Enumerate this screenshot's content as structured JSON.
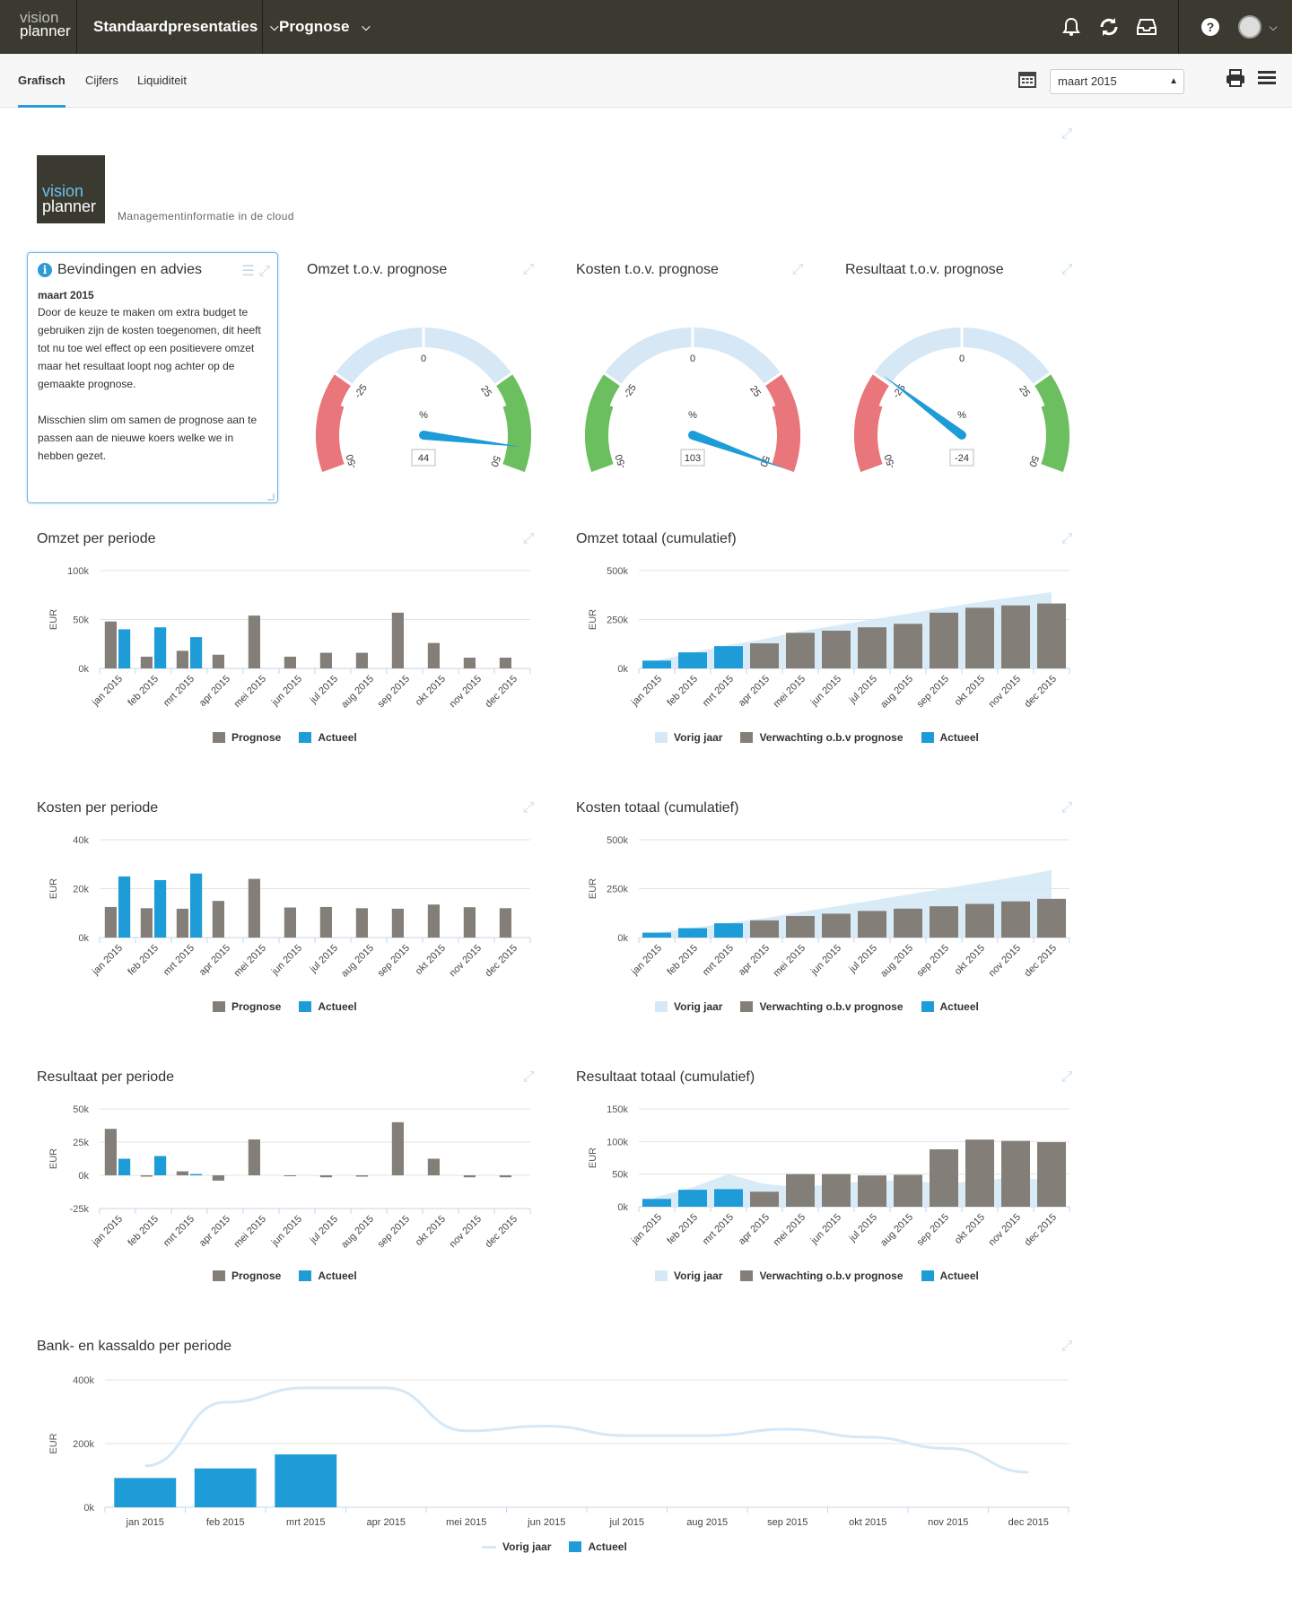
{
  "header": {
    "brand_line1": "vision",
    "brand_line2": "planner",
    "menus": [
      {
        "label": "Standaardpresentaties"
      },
      {
        "label": "Prognose"
      }
    ],
    "icons": [
      "bell-icon",
      "refresh-icon",
      "inbox-icon",
      "help-icon",
      "avatar"
    ]
  },
  "subnav": {
    "tabs": [
      "Grafisch",
      "Cijfers",
      "Liquiditeit"
    ],
    "active_tab": "Grafisch",
    "period_value": "maart 2015"
  },
  "logo": {
    "line1": "vision",
    "line2": "planner",
    "tagline": "Managementinformatie in de cloud"
  },
  "advice": {
    "title": "Bevindingen en advies",
    "date": "maart 2015",
    "paragraph1": "Door de keuze te maken om extra budget te gebruiken zijn de kosten toegenomen, dit heeft tot nu toe wel effect op een positievere omzet maar het resultaat loopt nog achter op de gemaakte prognose.",
    "paragraph2": "Misschien slim om samen de prognose aan te passen aan de nieuwe koers welke we in hebben gezet."
  },
  "colors": {
    "grey": "#837e78",
    "blue": "#1e9cd8",
    "lightblue": "#d4e8f7",
    "red": "#e8767a",
    "green": "#6cbf5f",
    "gauge_mid": "#d6e8f6"
  },
  "gauges": [
    {
      "title": "Omzet t.o.v. prognose",
      "value": 44,
      "display": "44",
      "green_side": "right",
      "unit": "%",
      "ticks": [
        "-50",
        "-25",
        "0",
        "25",
        "50"
      ]
    },
    {
      "title": "Kosten t.o.v. prognose",
      "value": 103,
      "display": "103",
      "green_side": "left",
      "unit": "%",
      "ticks": [
        "-50",
        "-25",
        "0",
        "25",
        "50"
      ]
    },
    {
      "title": "Resultaat t.o.v. prognose",
      "value": -24,
      "display": "-24",
      "green_side": "right",
      "unit": "%",
      "ticks": [
        "-50",
        "-25",
        "0",
        "25",
        "50"
      ]
    }
  ],
  "chart_data": [
    {
      "id": "omzet-periode",
      "type": "bar",
      "title": "Omzet per periode",
      "ylabel": "EUR",
      "categories": [
        "jan 2015",
        "feb 2015",
        "mrt 2015",
        "apr 2015",
        "mei 2015",
        "jun 2015",
        "jul 2015",
        "aug 2015",
        "sep 2015",
        "okt 2015",
        "nov 2015",
        "dec 2015"
      ],
      "yticks": [
        "0k",
        "50k",
        "100k"
      ],
      "ylim": [
        0,
        100000
      ],
      "series": [
        {
          "name": "Prognose",
          "values": [
            48000,
            12000,
            18000,
            14000,
            54000,
            12000,
            16000,
            16000,
            57000,
            26000,
            11000,
            11000
          ]
        },
        {
          "name": "Actueel",
          "values": [
            40000,
            42000,
            32000,
            null,
            null,
            null,
            null,
            null,
            null,
            null,
            null,
            null
          ]
        }
      ]
    },
    {
      "id": "omzet-cum",
      "type": "bar",
      "title": "Omzet totaal (cumulatief)",
      "ylabel": "EUR",
      "categories": [
        "jan 2015",
        "feb 2015",
        "mrt 2015",
        "apr 2015",
        "mei 2015",
        "jun 2015",
        "jul 2015",
        "aug 2015",
        "sep 2015",
        "okt 2015",
        "nov 2015",
        "dec 2015"
      ],
      "yticks": [
        "0k",
        "250k",
        "500k"
      ],
      "ylim": [
        0,
        500000
      ],
      "series": [
        {
          "name": "Vorig jaar",
          "kind": "area",
          "values": [
            40000,
            80000,
            120000,
            150000,
            190000,
            220000,
            250000,
            280000,
            310000,
            340000,
            365000,
            390000
          ]
        },
        {
          "name": "Verwachting o.b.v prognose",
          "values": [
            null,
            null,
            null,
            128000,
            182000,
            193000,
            210000,
            228000,
            285000,
            310000,
            322000,
            332000
          ]
        },
        {
          "name": "Actueel",
          "values": [
            40000,
            82000,
            114000,
            null,
            null,
            null,
            null,
            null,
            null,
            null,
            null,
            null
          ]
        }
      ]
    },
    {
      "id": "kosten-periode",
      "type": "bar",
      "title": "Kosten per periode",
      "ylabel": "EUR",
      "categories": [
        "jan 2015",
        "feb 2015",
        "mrt 2015",
        "apr 2015",
        "mei 2015",
        "jun 2015",
        "jul 2015",
        "aug 2015",
        "sep 2015",
        "okt 2015",
        "nov 2015",
        "dec 2015"
      ],
      "yticks": [
        "0k",
        "20k",
        "40k"
      ],
      "ylim": [
        0,
        40000
      ],
      "series": [
        {
          "name": "Prognose",
          "values": [
            12500,
            12000,
            11800,
            15000,
            24000,
            12300,
            12500,
            12000,
            11800,
            13500,
            12400,
            12000
          ]
        },
        {
          "name": "Actueel",
          "values": [
            25000,
            23500,
            26200,
            null,
            null,
            null,
            null,
            null,
            null,
            null,
            null,
            null
          ]
        }
      ]
    },
    {
      "id": "kosten-cum",
      "type": "bar",
      "title": "Kosten totaal (cumulatief)",
      "ylabel": "EUR",
      "categories": [
        "jan 2015",
        "feb 2015",
        "mrt 2015",
        "apr 2015",
        "mei 2015",
        "jun 2015",
        "jul 2015",
        "aug 2015",
        "sep 2015",
        "okt 2015",
        "nov 2015",
        "dec 2015"
      ],
      "yticks": [
        "0k",
        "250k",
        "500k"
      ],
      "ylim": [
        0,
        500000
      ],
      "series": [
        {
          "name": "Vorig jaar",
          "kind": "area",
          "values": [
            25000,
            50000,
            75000,
            100000,
            130000,
            160000,
            190000,
            220000,
            250000,
            280000,
            310000,
            345000
          ]
        },
        {
          "name": "Verwachting o.b.v prognose",
          "values": [
            null,
            null,
            null,
            88000,
            110000,
            122000,
            136000,
            148000,
            160000,
            172000,
            185000,
            198000
          ]
        },
        {
          "name": "Actueel",
          "values": [
            25000,
            48000,
            73000,
            null,
            null,
            null,
            null,
            null,
            null,
            null,
            null,
            null
          ]
        }
      ]
    },
    {
      "id": "resultaat-periode",
      "type": "bar",
      "title": "Resultaat per periode",
      "ylabel": "EUR",
      "categories": [
        "jan 2015",
        "feb 2015",
        "mrt 2015",
        "apr 2015",
        "mei 2015",
        "jun 2015",
        "jul 2015",
        "aug 2015",
        "sep 2015",
        "okt 2015",
        "nov 2015",
        "dec 2015"
      ],
      "yticks": [
        "-25k",
        "0k",
        "25k",
        "50k"
      ],
      "ylim": [
        -25000,
        50000
      ],
      "series": [
        {
          "name": "Prognose",
          "values": [
            35000,
            -1000,
            3000,
            -4000,
            27000,
            0,
            -1500,
            -1000,
            40000,
            12500,
            -1500,
            -1500
          ]
        },
        {
          "name": "Actueel",
          "values": [
            12500,
            14500,
            1000,
            null,
            null,
            null,
            null,
            null,
            null,
            null,
            null,
            null
          ]
        }
      ]
    },
    {
      "id": "resultaat-cum",
      "type": "bar",
      "title": "Resultaat totaal (cumulatief)",
      "ylabel": "EUR",
      "categories": [
        "jan 2015",
        "feb 2015",
        "mrt 2015",
        "apr 2015",
        "mei 2015",
        "jun 2015",
        "jul 2015",
        "aug 2015",
        "sep 2015",
        "okt 2015",
        "nov 2015",
        "dec 2015"
      ],
      "yticks": [
        "0k",
        "50k",
        "100k",
        "150k"
      ],
      "ylim": [
        0,
        150000
      ],
      "series": [
        {
          "name": "Vorig jaar",
          "kind": "area",
          "values": [
            15000,
            30000,
            50000,
            35000,
            30000,
            35000,
            40000,
            40000,
            35000,
            40000,
            45000,
            40000
          ]
        },
        {
          "name": "Verwachting o.b.v prognose",
          "values": [
            null,
            null,
            null,
            23000,
            50000,
            50000,
            48000,
            49000,
            88000,
            103000,
            101000,
            99000
          ]
        },
        {
          "name": "Actueel",
          "values": [
            12000,
            26000,
            27000,
            null,
            null,
            null,
            null,
            null,
            null,
            null,
            null,
            null
          ]
        }
      ]
    },
    {
      "id": "bank-periode",
      "type": "bar",
      "title": "Bank- en kassaldo per periode",
      "ylabel": "EUR",
      "categories": [
        "jan 2015",
        "feb 2015",
        "mrt 2015",
        "apr 2015",
        "mei 2015",
        "jun 2015",
        "jul 2015",
        "aug 2015",
        "sep 2015",
        "okt 2015",
        "nov 2015",
        "dec 2015"
      ],
      "yticks": [
        "0k",
        "200k",
        "400k"
      ],
      "ylim": [
        0,
        400000
      ],
      "series": [
        {
          "name": "Vorig jaar",
          "kind": "line",
          "values": [
            130000,
            330000,
            375000,
            375000,
            240000,
            255000,
            225000,
            225000,
            245000,
            220000,
            185000,
            110000
          ]
        },
        {
          "name": "Actueel",
          "values": [
            92000,
            122000,
            166000,
            null,
            null,
            null,
            null,
            null,
            null,
            null,
            null,
            null
          ]
        }
      ]
    }
  ]
}
